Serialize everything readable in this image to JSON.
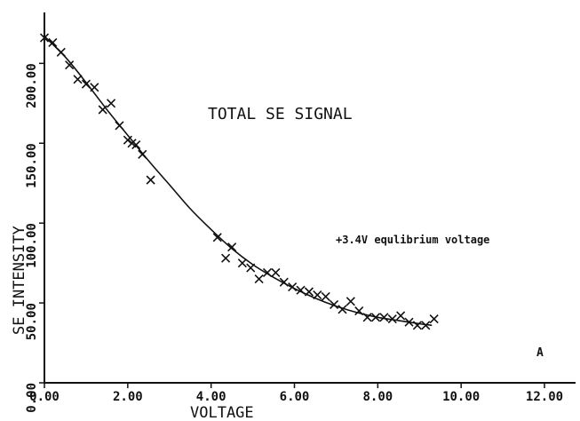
{
  "chart_data": {
    "type": "scatter",
    "xlabel": "VOLTAGE",
    "ylabel": "SE INTENSITY",
    "xlim": [
      0,
      12
    ],
    "ylim": [
      0,
      210
    ],
    "x_ticks": [
      "0.00",
      "2.00",
      "4.00",
      "6.00",
      "8.00",
      "10.00",
      "12.00"
    ],
    "y_ticks": [
      "0.00",
      "50.00",
      "100.00",
      "150.00",
      "200.00"
    ],
    "annotations": {
      "title": "TOTAL SE SIGNAL",
      "note": "+3.4V equlibrium voltage",
      "panel": "A"
    },
    "grid": false,
    "series": [
      {
        "kind": "points",
        "marker": "x",
        "x": [
          0.0,
          0.2,
          0.4,
          0.6,
          0.8,
          1.0,
          1.2,
          1.4,
          1.6,
          1.8,
          2.0,
          2.1,
          2.2,
          2.35,
          2.55,
          4.15,
          4.35,
          4.5,
          4.75,
          4.95,
          5.15,
          5.35,
          5.55,
          5.75,
          5.95,
          6.15,
          6.35,
          6.55,
          6.75,
          6.95,
          7.15,
          7.35,
          7.55,
          7.75,
          7.95,
          8.15,
          8.35,
          8.55,
          8.75,
          8.95,
          9.15,
          9.35
        ],
        "y": [
          216,
          213,
          207,
          199,
          190,
          187,
          185,
          171,
          175,
          161,
          152,
          150,
          149,
          143,
          127,
          91,
          78,
          85,
          75,
          72,
          65,
          69,
          69,
          63,
          60,
          58,
          57,
          55,
          54,
          49,
          46,
          51,
          45,
          41,
          41,
          41,
          40,
          42,
          38,
          36,
          36,
          40
        ]
      },
      {
        "kind": "curve",
        "x": [
          0.0,
          0.5,
          1.0,
          1.5,
          2.0,
          2.5,
          3.0,
          3.5,
          4.0,
          4.5,
          5.0,
          5.5,
          6.0,
          6.5,
          7.0,
          7.5,
          8.0,
          8.5,
          9.0,
          9.3
        ],
        "y": [
          217,
          204,
          188,
          171,
          155,
          139,
          124,
          109,
          96,
          84,
          74,
          66,
          59,
          53,
          48,
          44,
          41,
          39,
          37,
          36
        ]
      }
    ]
  }
}
